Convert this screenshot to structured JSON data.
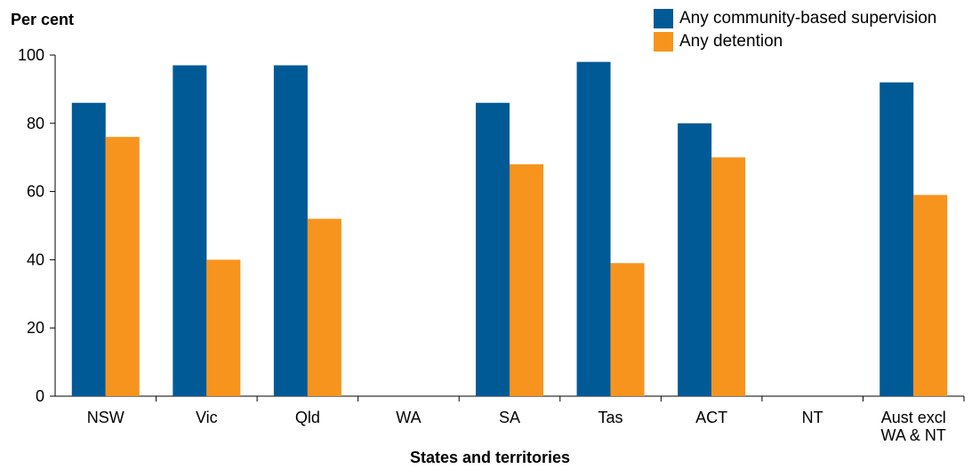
{
  "chart_data": {
    "type": "bar",
    "ylabel": "Per cent",
    "xlabel": "States and territories",
    "ylim": [
      0,
      100
    ],
    "yticks": [
      0,
      20,
      40,
      60,
      80,
      100
    ],
    "grid": false,
    "legend_position": "top-right",
    "categories": [
      "NSW",
      "Vic",
      "Qld",
      "WA",
      "SA",
      "Tas",
      "ACT",
      "NT",
      "Aust excl\nWA & NT"
    ],
    "series": [
      {
        "name": "Any community-based supervision",
        "color": "#005a96",
        "values": [
          86,
          97,
          97,
          null,
          86,
          98,
          80,
          null,
          92
        ]
      },
      {
        "name": "Any detention",
        "color": "#f7941d",
        "values": [
          76,
          40,
          52,
          null,
          68,
          39,
          70,
          null,
          59
        ]
      }
    ]
  }
}
